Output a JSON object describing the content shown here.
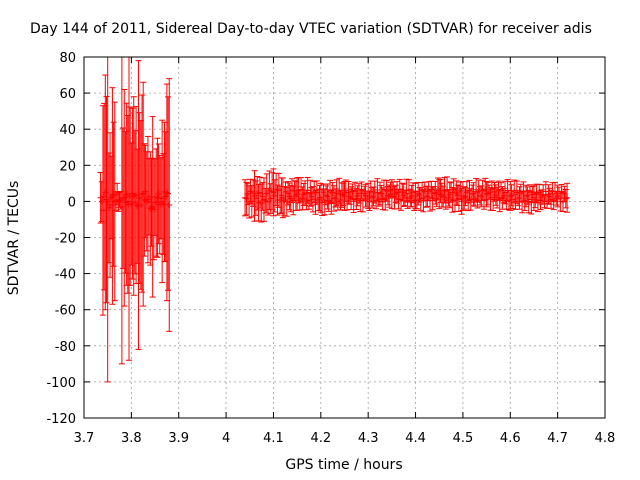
{
  "chart_data": {
    "type": "scatter",
    "title": "Day 144 of 2011, Sidereal Day-to-day VTEC variation (SDTVAR) for receiver adis",
    "xlabel": "GPS time / hours",
    "ylabel": "SDTVAR / TECUs",
    "xlim": [
      3.7,
      4.8
    ],
    "ylim": [
      -120,
      80
    ],
    "x_ticks": [
      "3.7",
      "3.8",
      "3.9",
      "4",
      "4.1",
      "4.2",
      "4.3",
      "4.4",
      "4.5",
      "4.6",
      "4.7",
      "4.8"
    ],
    "y_ticks": [
      "-120",
      "-100",
      "-80",
      "-60",
      "-40",
      "-20",
      "0",
      "20",
      "40",
      "60",
      "80"
    ],
    "grid": true,
    "grid_style": "dotted",
    "series_color": "#ff0000",
    "error_bars": true,
    "legend": "none",
    "series": [
      {
        "segments": [
          {
            "x_range": [
              3.73,
              3.88
            ],
            "points": [
              {
                "x": 3.735,
                "y": 2,
                "err": 14
              },
              {
                "x": 3.74,
                "y": -5,
                "err": 58
              },
              {
                "x": 3.745,
                "y": 5,
                "err": 65
              },
              {
                "x": 3.75,
                "y": 0,
                "err": 100
              },
              {
                "x": 3.755,
                "y": -2,
                "err": 40
              },
              {
                "x": 3.76,
                "y": 3,
                "err": 60
              },
              {
                "x": 3.765,
                "y": 0,
                "err": 55
              },
              {
                "x": 3.77,
                "y": 4,
                "err": 6
              },
              {
                "x": 3.78,
                "y": -3,
                "err": 87
              },
              {
                "x": 3.785,
                "y": 2,
                "err": 60
              },
              {
                "x": 3.795,
                "y": 0,
                "err": 88
              },
              {
                "x": 3.805,
                "y": 3,
                "err": 55
              },
              {
                "x": 3.815,
                "y": -2,
                "err": 80
              },
              {
                "x": 3.825,
                "y": 4,
                "err": 62
              },
              {
                "x": 3.835,
                "y": 1,
                "err": 35
              },
              {
                "x": 3.845,
                "y": -3,
                "err": 50
              },
              {
                "x": 3.855,
                "y": 2,
                "err": 33
              },
              {
                "x": 3.865,
                "y": 0,
                "err": 45
              },
              {
                "x": 3.875,
                "y": 5,
                "err": 60
              },
              {
                "x": 3.88,
                "y": -2,
                "err": 70
              }
            ]
          },
          {
            "x_range": [
              4.04,
              4.73
            ],
            "points": [
              {
                "x": 4.04,
                "y": 2,
                "err": 10
              },
              {
                "x": 4.06,
                "y": 3,
                "err": 14
              },
              {
                "x": 4.08,
                "y": 1,
                "err": 12
              },
              {
                "x": 4.1,
                "y": 5,
                "err": 13
              },
              {
                "x": 4.12,
                "y": 2,
                "err": 11
              },
              {
                "x": 4.15,
                "y": 4,
                "err": 9
              },
              {
                "x": 4.2,
                "y": 2,
                "err": 8
              },
              {
                "x": 4.25,
                "y": 3,
                "err": 8
              },
              {
                "x": 4.3,
                "y": 3,
                "err": 7
              },
              {
                "x": 4.35,
                "y": 4,
                "err": 8
              },
              {
                "x": 4.4,
                "y": 3,
                "err": 7
              },
              {
                "x": 4.45,
                "y": 4,
                "err": 8
              },
              {
                "x": 4.5,
                "y": 3,
                "err": 8
              },
              {
                "x": 4.55,
                "y": 4,
                "err": 7
              },
              {
                "x": 4.6,
                "y": 3,
                "err": 8
              },
              {
                "x": 4.65,
                "y": 2,
                "err": 7
              },
              {
                "x": 4.7,
                "y": 3,
                "err": 6
              },
              {
                "x": 4.72,
                "y": 2,
                "err": 8
              }
            ]
          }
        ]
      }
    ]
  }
}
